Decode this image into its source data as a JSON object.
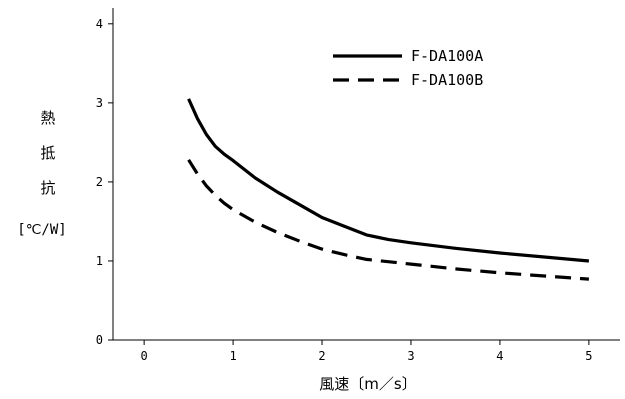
{
  "chart_data": {
    "type": "line",
    "xlabel": "風速〔m／s〕",
    "ylabel_chars": [
      "熱",
      "抵",
      "抗"
    ],
    "ylabel_unit": "[℃/W]",
    "xlim": [
      -0.35,
      5.35
    ],
    "ylim": [
      0,
      4.2
    ],
    "xticks": [
      0,
      1,
      2,
      3,
      4,
      5
    ],
    "yticks": [
      0,
      1,
      2,
      3,
      4
    ],
    "grid": false,
    "legend_position": "top-right",
    "series": [
      {
        "name": "F-DA100A",
        "style": "solid",
        "color": "#000000",
        "x": [
          0.5,
          0.6,
          0.7,
          0.8,
          0.9,
          1.0,
          1.25,
          1.5,
          1.75,
          2.0,
          2.25,
          2.5,
          2.75,
          3.0,
          3.5,
          4.0,
          4.5,
          5.0
        ],
        "y": [
          3.05,
          2.8,
          2.6,
          2.45,
          2.35,
          2.27,
          2.05,
          1.87,
          1.71,
          1.55,
          1.44,
          1.33,
          1.27,
          1.23,
          1.16,
          1.1,
          1.05,
          1.0
        ]
      },
      {
        "name": "F-DA100B",
        "style": "dashed",
        "color": "#000000",
        "x": [
          0.5,
          0.6,
          0.7,
          0.8,
          0.9,
          1.0,
          1.25,
          1.5,
          1.75,
          2.0,
          2.25,
          2.5,
          3.0,
          3.5,
          4.0,
          4.5,
          5.0
        ],
        "y": [
          2.28,
          2.1,
          1.95,
          1.83,
          1.73,
          1.65,
          1.49,
          1.36,
          1.25,
          1.15,
          1.08,
          1.02,
          0.96,
          0.9,
          0.85,
          0.81,
          0.77
        ]
      }
    ]
  }
}
